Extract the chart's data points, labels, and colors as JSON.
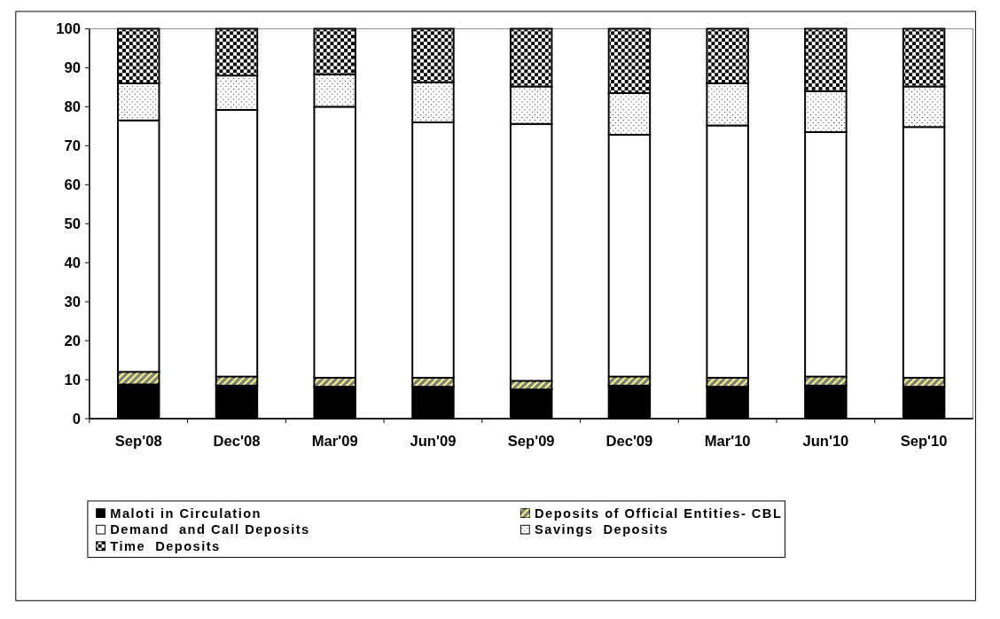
{
  "chart_data": {
    "type": "bar",
    "stacked": true,
    "categories": [
      "Sep'08",
      "Dec'08",
      "Mar'09",
      "Jun'09",
      "Sep'09",
      "Dec'09",
      "Mar'10",
      "Jun'10",
      "Sep'10"
    ],
    "series": [
      {
        "name": "Maloti in Circulation",
        "color": "#000000",
        "values": [
          8.8,
          8.5,
          8.2,
          8.2,
          7.5,
          8.5,
          8.2,
          8.5,
          8.2
        ]
      },
      {
        "name": "Deposits of Official Entities- CBL",
        "color": "#808080",
        "values": [
          3.2,
          2.3,
          2.3,
          2.3,
          2.2,
          2.3,
          2.3,
          2.3,
          2.3
        ]
      },
      {
        "name": "Demand  and Call Deposits",
        "color": "#ffffff",
        "values": [
          64.5,
          68.4,
          69.5,
          65.5,
          65.9,
          62,
          64.7,
          62.7,
          64.3
        ]
      },
      {
        "name": "Savings  Deposits",
        "color": "#ffffff",
        "values": [
          9.5,
          8.8,
          8.3,
          10.3,
          9.6,
          10.7,
          10.8,
          10.5,
          10.4
        ]
      },
      {
        "name": "Time  Deposits",
        "color": "#ffffff",
        "values": [
          14,
          12,
          11.7,
          13.7,
          14.8,
          16.5,
          14,
          16,
          14.8
        ]
      }
    ],
    "ylim": [
      0,
      100
    ],
    "yticks": [
      0,
      10,
      20,
      30,
      40,
      50,
      60,
      70,
      80,
      90,
      100
    ],
    "grid": false,
    "legend": "bottom"
  }
}
